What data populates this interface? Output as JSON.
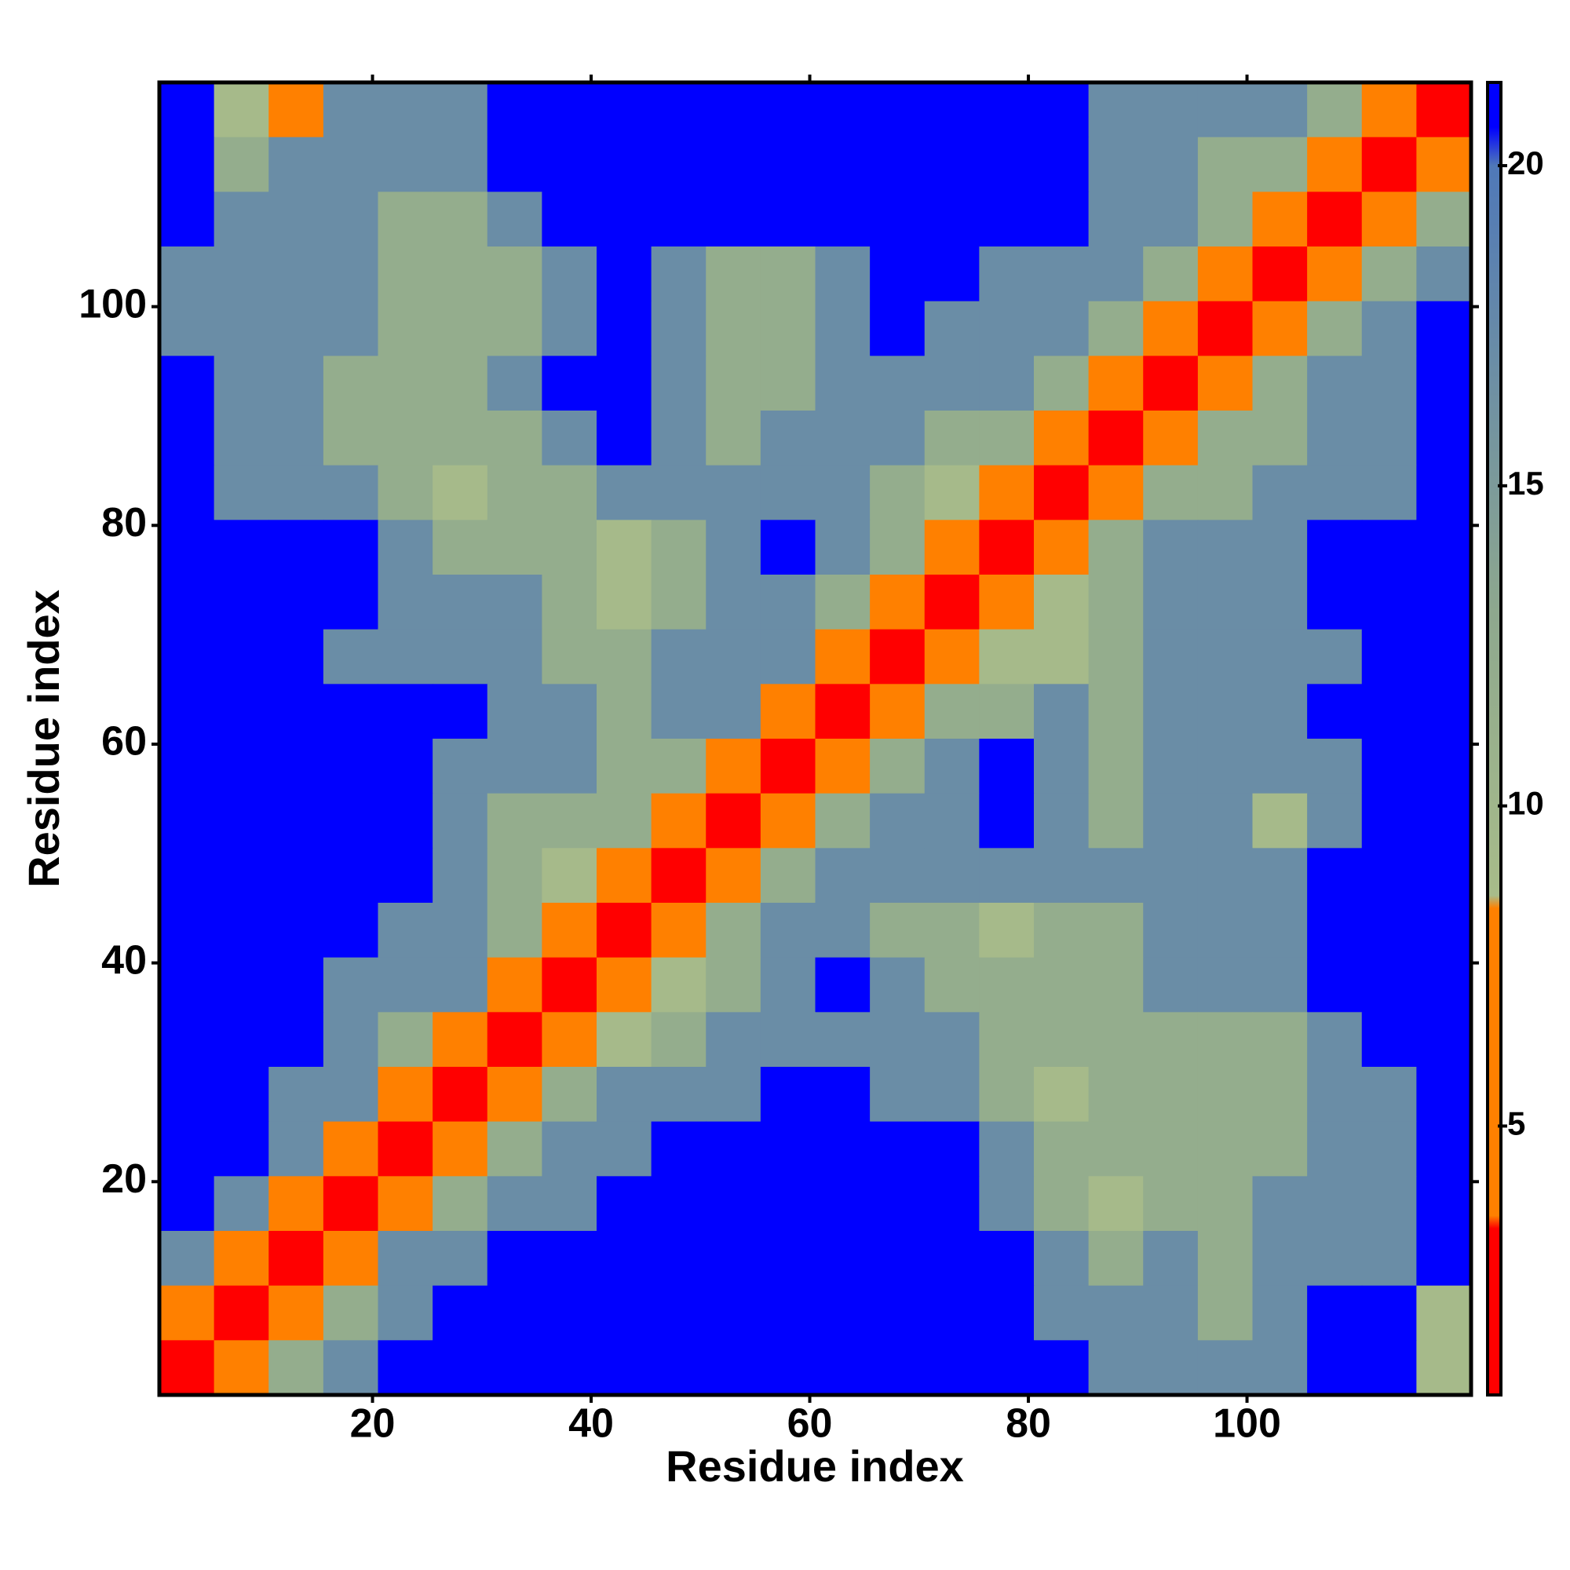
{
  "chart_data": {
    "type": "heatmap",
    "x_label": "Residue index",
    "y_label": "Residue index",
    "x": [
      3,
      8,
      13,
      18,
      23,
      28,
      33,
      38,
      43,
      48,
      53,
      58,
      63,
      68,
      73,
      78,
      83,
      88,
      93,
      98,
      103,
      108,
      113,
      118
    ],
    "y": [
      118,
      113,
      108,
      103,
      98,
      93,
      88,
      83,
      78,
      73,
      68,
      63,
      58,
      53,
      48,
      43,
      38,
      33,
      28,
      23,
      18,
      13,
      8,
      3
    ],
    "values": [
      [
        22,
        9,
        6,
        17,
        17,
        17,
        22,
        22,
        22,
        22,
        22,
        22,
        22,
        22,
        22,
        22,
        22,
        17,
        17,
        17,
        17,
        12,
        6,
        2
      ],
      [
        22,
        12,
        17,
        17,
        17,
        17,
        22,
        22,
        22,
        22,
        22,
        22,
        22,
        22,
        22,
        22,
        22,
        17,
        17,
        12,
        12,
        6,
        2,
        6
      ],
      [
        22,
        17,
        17,
        17,
        12,
        12,
        17,
        22,
        22,
        22,
        22,
        22,
        22,
        22,
        22,
        22,
        22,
        17,
        17,
        12,
        6,
        2,
        6,
        12
      ],
      [
        17,
        17,
        17,
        17,
        12,
        12,
        12,
        17,
        22,
        17,
        12,
        12,
        17,
        22,
        22,
        17,
        17,
        17,
        12,
        6,
        2,
        6,
        12,
        17
      ],
      [
        17,
        17,
        17,
        17,
        12,
        12,
        12,
        17,
        22,
        17,
        12,
        12,
        17,
        22,
        17,
        17,
        17,
        12,
        6,
        2,
        6,
        12,
        17,
        22
      ],
      [
        22,
        17,
        17,
        12,
        12,
        12,
        17,
        22,
        22,
        17,
        12,
        12,
        17,
        17,
        17,
        17,
        12,
        6,
        2,
        6,
        12,
        17,
        17,
        22
      ],
      [
        22,
        17,
        17,
        12,
        12,
        12,
        12,
        17,
        22,
        17,
        12,
        17,
        17,
        17,
        12,
        12,
        6,
        2,
        6,
        12,
        12,
        17,
        17,
        22
      ],
      [
        22,
        17,
        17,
        17,
        12,
        9,
        12,
        12,
        17,
        17,
        17,
        17,
        17,
        12,
        9,
        6,
        2,
        6,
        12,
        12,
        17,
        17,
        17,
        22
      ],
      [
        22,
        22,
        22,
        22,
        17,
        12,
        12,
        12,
        9,
        12,
        17,
        22,
        17,
        12,
        6,
        2,
        6,
        12,
        17,
        17,
        17,
        22,
        22,
        22
      ],
      [
        22,
        22,
        22,
        22,
        17,
        17,
        17,
        12,
        9,
        12,
        17,
        17,
        12,
        6,
        2,
        6,
        9,
        12,
        17,
        17,
        17,
        22,
        22,
        22
      ],
      [
        22,
        22,
        22,
        17,
        17,
        17,
        17,
        12,
        12,
        17,
        17,
        17,
        6,
        2,
        6,
        9,
        9,
        12,
        17,
        17,
        17,
        17,
        22,
        22
      ],
      [
        22,
        22,
        22,
        22,
        22,
        22,
        17,
        17,
        12,
        17,
        17,
        6,
        2,
        6,
        12,
        12,
        17,
        12,
        17,
        17,
        17,
        22,
        22,
        22
      ],
      [
        22,
        22,
        22,
        22,
        22,
        17,
        17,
        17,
        12,
        12,
        6,
        2,
        6,
        12,
        17,
        22,
        17,
        12,
        17,
        17,
        17,
        17,
        22,
        22
      ],
      [
        22,
        22,
        22,
        22,
        22,
        17,
        12,
        12,
        12,
        6,
        2,
        6,
        12,
        17,
        17,
        22,
        17,
        12,
        17,
        17,
        9,
        17,
        22,
        22
      ],
      [
        22,
        22,
        22,
        22,
        22,
        17,
        12,
        9,
        6,
        2,
        6,
        12,
        17,
        17,
        17,
        17,
        17,
        17,
        17,
        17,
        17,
        22,
        22,
        22
      ],
      [
        22,
        22,
        22,
        22,
        17,
        17,
        12,
        6,
        2,
        6,
        12,
        17,
        17,
        12,
        12,
        9,
        12,
        12,
        17,
        17,
        17,
        22,
        22,
        22
      ],
      [
        22,
        22,
        22,
        17,
        17,
        17,
        6,
        2,
        6,
        9,
        12,
        17,
        22,
        17,
        12,
        12,
        12,
        12,
        17,
        17,
        17,
        22,
        22,
        22
      ],
      [
        22,
        22,
        22,
        17,
        12,
        6,
        2,
        6,
        9,
        12,
        17,
        17,
        17,
        17,
        17,
        12,
        12,
        12,
        12,
        12,
        12,
        17,
        22,
        22
      ],
      [
        22,
        22,
        17,
        17,
        6,
        2,
        6,
        12,
        17,
        17,
        17,
        22,
        22,
        17,
        17,
        12,
        9,
        12,
        12,
        12,
        12,
        17,
        17,
        22
      ],
      [
        22,
        22,
        17,
        6,
        2,
        6,
        12,
        17,
        17,
        22,
        22,
        22,
        22,
        22,
        22,
        17,
        12,
        12,
        12,
        12,
        12,
        17,
        17,
        22
      ],
      [
        22,
        17,
        6,
        2,
        6,
        12,
        17,
        17,
        22,
        22,
        22,
        22,
        22,
        22,
        22,
        17,
        12,
        9,
        12,
        12,
        17,
        17,
        17,
        22
      ],
      [
        17,
        6,
        2,
        6,
        17,
        17,
        22,
        22,
        22,
        22,
        22,
        22,
        22,
        22,
        22,
        22,
        17,
        12,
        17,
        12,
        17,
        17,
        17,
        22
      ],
      [
        6,
        2,
        6,
        12,
        17,
        22,
        22,
        22,
        22,
        22,
        22,
        22,
        22,
        22,
        22,
        22,
        17,
        17,
        17,
        12,
        17,
        22,
        22,
        9
      ],
      [
        2,
        6,
        12,
        17,
        22,
        22,
        22,
        22,
        22,
        22,
        22,
        22,
        22,
        22,
        22,
        22,
        22,
        17,
        17,
        17,
        17,
        22,
        22,
        9
      ]
    ],
    "xlim": [
      0.5,
      120.5
    ],
    "ylim": [
      0.5,
      120.5
    ],
    "xticks": [
      20,
      40,
      60,
      80,
      100
    ],
    "yticks": [
      20,
      40,
      60,
      80,
      100
    ],
    "zlim": [
      0.8,
      21.3
    ],
    "zticks": [
      5,
      10,
      15,
      20
    ],
    "colorscale": [
      [
        0.8,
        "#ff0000"
      ],
      [
        3.4,
        "#ff0000"
      ],
      [
        3.6,
        "#ff8000"
      ],
      [
        8.4,
        "#ff8000"
      ],
      [
        8.6,
        "#a8bc8a"
      ],
      [
        13,
        "#8ea88e"
      ],
      [
        20,
        "#4f78b8"
      ],
      [
        20.6,
        "#0000ff"
      ],
      [
        21.3,
        "#0000ff"
      ]
    ]
  }
}
